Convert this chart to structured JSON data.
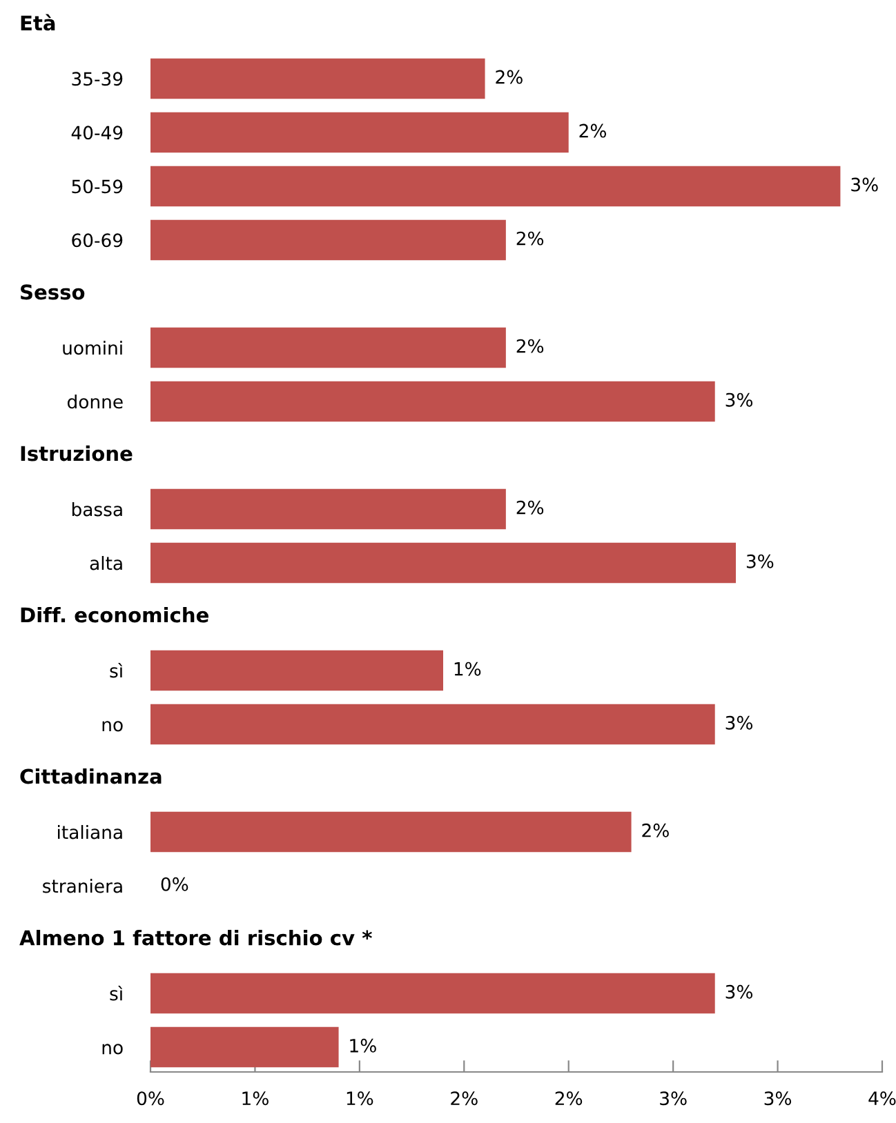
{
  "chart_data": {
    "type": "bar",
    "orientation": "horizontal",
    "categories": [
      null,
      "35-39",
      "40-49",
      "50-59",
      "60-69",
      null,
      "uomini",
      "donne",
      null,
      "bassa",
      "alta",
      null,
      "sì",
      "no",
      null,
      "italiana",
      "straniera",
      null,
      "sì",
      "no"
    ],
    "annotations": [
      "Età",
      "Sesso",
      "Istruzione",
      "Diff. economiche",
      "Cittadinanza",
      "Almeno 1 fattore di rischio cv *"
    ],
    "values": [
      null,
      1.6,
      2.0,
      3.3,
      1.7,
      null,
      1.7,
      2.7,
      null,
      1.7,
      2.8,
      null,
      1.4,
      2.7,
      null,
      2.3,
      0,
      null,
      2.7,
      0.9
    ],
    "value_labels": [
      null,
      "2%",
      "2%",
      "3%",
      "2%",
      null,
      "2%",
      "3%",
      null,
      "2%",
      "3%",
      null,
      "1%",
      "3%",
      null,
      "2%",
      "0%",
      null,
      "3%",
      "1%"
    ],
    "color": "#c0504d",
    "xlim": [
      0,
      3.5
    ],
    "xticks": [
      {
        "value": 0,
        "label": "0%"
      },
      {
        "value": 0.5,
        "label": "1%"
      },
      {
        "value": 1,
        "label": "1%"
      },
      {
        "value": 1.5,
        "label": "2%"
      },
      {
        "value": 2,
        "label": "2%"
      },
      {
        "value": 2.5,
        "label": "3%"
      },
      {
        "value": 3,
        "label": "3%"
      },
      {
        "value": 3.5,
        "label": "4%"
      }
    ],
    "grid": false,
    "legend": false
  }
}
